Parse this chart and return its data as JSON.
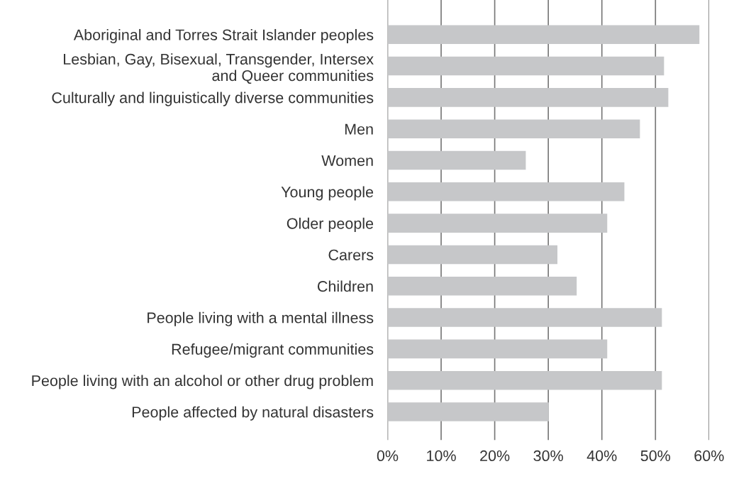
{
  "chart_data": {
    "type": "bar",
    "orientation": "horizontal",
    "categories": [
      "Aboriginal and Torres Strait Islander peoples",
      "Lesbian, Gay, Bisexual, Transgender, Intersex\nand Queer communities",
      "Culturally and linguistically diverse communities",
      "Men",
      "Women",
      "Young people",
      "Older people",
      "Carers",
      "Children",
      "People living with a mental illness",
      "Refugee/migrant communities",
      "People living with an alcohol or other drug problem",
      "People affected by natural disasters"
    ],
    "values": [
      58.2,
      51.6,
      52.4,
      47.1,
      25.8,
      44.2,
      41.0,
      31.7,
      35.3,
      51.2,
      41.0,
      51.2,
      30.1
    ],
    "color": "#c6c7c9",
    "xlim": [
      0,
      60
    ],
    "xticks": [
      {
        "value": 0,
        "label": "0%"
      },
      {
        "value": 10,
        "label": "10%"
      },
      {
        "value": 20,
        "label": "20%"
      },
      {
        "value": 30,
        "label": "30%"
      },
      {
        "value": 40,
        "label": "40%"
      },
      {
        "value": 50,
        "label": "50%"
      },
      {
        "value": 60,
        "label": "60%"
      }
    ],
    "grid": "x"
  }
}
